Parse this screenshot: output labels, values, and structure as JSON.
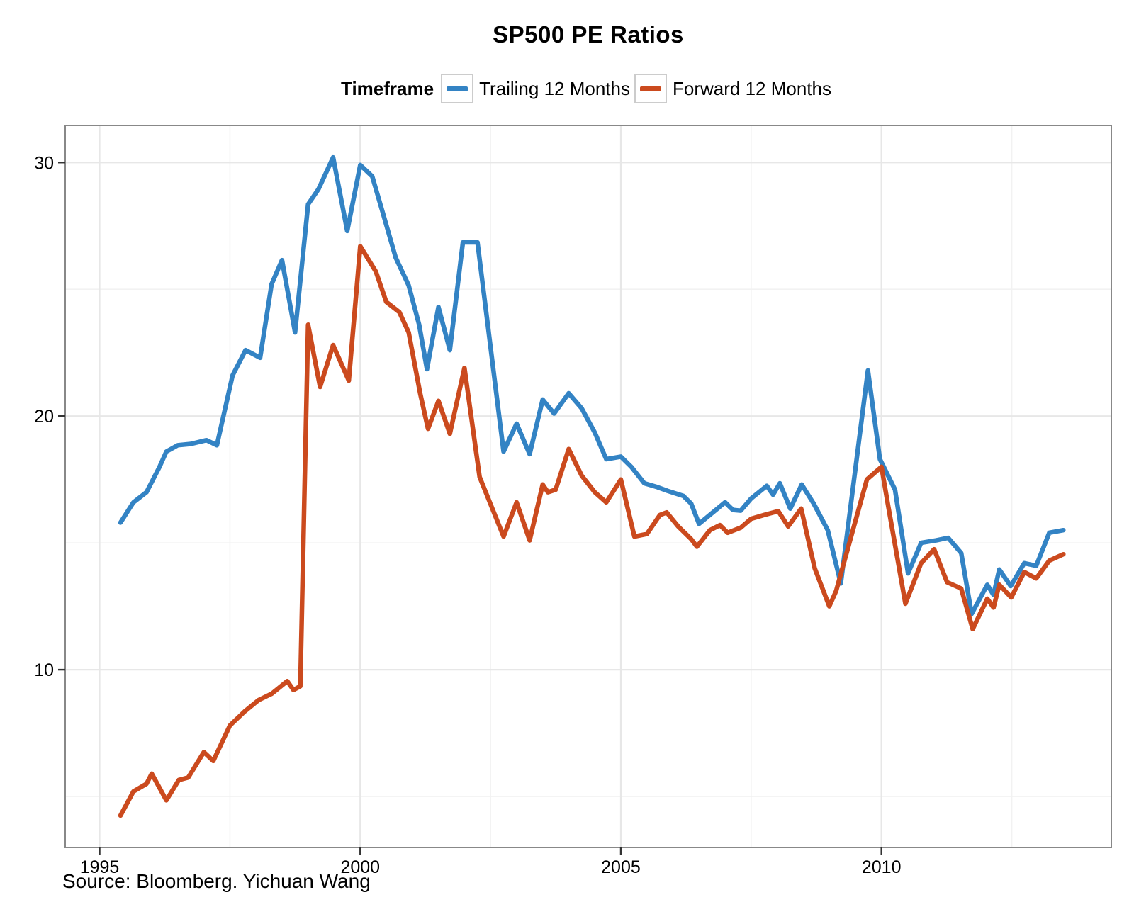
{
  "page": {
    "source_note": "Source: Bloomberg. Yichuan Wang"
  },
  "legend": {
    "title": "Timeframe",
    "items": [
      {
        "label": "Trailing 12 Months",
        "color": "#3383C4"
      },
      {
        "label": "Forward 12 Months",
        "color": "#CB4A1E"
      }
    ]
  },
  "chart_data": {
    "type": "line",
    "title": "SP500 PE Ratios",
    "xlabel": "",
    "ylabel": "",
    "grid": "major+minor",
    "legend_position": "top",
    "x_axis": {
      "range": [
        1994.34,
        2014.41
      ],
      "major_ticks": [
        1995,
        2000,
        2005,
        2010
      ],
      "tick_labels": [
        "1995",
        "2000",
        "2005",
        "2010"
      ],
      "minor_ticks": [
        1997.5,
        2002.5,
        2007.5,
        2012.5
      ]
    },
    "y_axis": {
      "range": [
        2.99,
        31.46
      ],
      "major_ticks": [
        10,
        20,
        30
      ],
      "tick_labels": [
        "10",
        "20",
        "30"
      ],
      "minor_ticks": [
        5,
        15,
        25
      ]
    },
    "series": [
      {
        "name": "Trailing 12 Months",
        "color": "#3383C4",
        "points": [
          [
            1995.4,
            15.8
          ],
          [
            1995.65,
            16.6
          ],
          [
            1995.9,
            17.0
          ],
          [
            1996.15,
            18.0
          ],
          [
            1996.28,
            18.6
          ],
          [
            1996.5,
            18.85
          ],
          [
            1996.75,
            18.9
          ],
          [
            1997.05,
            19.05
          ],
          [
            1997.25,
            18.85
          ],
          [
            1997.55,
            21.6
          ],
          [
            1997.8,
            22.6
          ],
          [
            1998.08,
            22.3
          ],
          [
            1998.3,
            25.2
          ],
          [
            1998.5,
            26.15
          ],
          [
            1998.75,
            23.3
          ],
          [
            1999.0,
            28.35
          ],
          [
            1999.2,
            28.95
          ],
          [
            1999.48,
            30.2
          ],
          [
            1999.75,
            27.3
          ],
          [
            2000.0,
            29.9
          ],
          [
            2000.23,
            29.45
          ],
          [
            2000.45,
            27.9
          ],
          [
            2000.68,
            26.25
          ],
          [
            2000.93,
            25.15
          ],
          [
            2001.13,
            23.6
          ],
          [
            2001.28,
            21.85
          ],
          [
            2001.5,
            24.3
          ],
          [
            2001.72,
            22.6
          ],
          [
            2001.97,
            26.85
          ],
          [
            2002.25,
            26.85
          ],
          [
            2002.75,
            18.6
          ],
          [
            2003.0,
            19.7
          ],
          [
            2003.25,
            18.5
          ],
          [
            2003.5,
            20.65
          ],
          [
            2003.72,
            20.1
          ],
          [
            2004.0,
            20.9
          ],
          [
            2004.25,
            20.3
          ],
          [
            2004.5,
            19.35
          ],
          [
            2004.72,
            18.3
          ],
          [
            2005.0,
            18.4
          ],
          [
            2005.2,
            18.0
          ],
          [
            2005.45,
            17.35
          ],
          [
            2005.7,
            17.2
          ],
          [
            2005.9,
            17.05
          ],
          [
            2006.2,
            16.85
          ],
          [
            2006.35,
            16.55
          ],
          [
            2006.5,
            15.75
          ],
          [
            2007.0,
            16.6
          ],
          [
            2007.15,
            16.3
          ],
          [
            2007.3,
            16.27
          ],
          [
            2007.5,
            16.75
          ],
          [
            2007.8,
            17.25
          ],
          [
            2007.92,
            16.9
          ],
          [
            2008.05,
            17.35
          ],
          [
            2008.25,
            16.35
          ],
          [
            2008.47,
            17.3
          ],
          [
            2008.7,
            16.55
          ],
          [
            2008.97,
            15.5
          ],
          [
            2009.22,
            13.4
          ],
          [
            2009.74,
            21.8
          ],
          [
            2009.97,
            18.3
          ],
          [
            2010.26,
            17.1
          ],
          [
            2010.51,
            13.8
          ],
          [
            2010.76,
            15.0
          ],
          [
            2011.05,
            15.1
          ],
          [
            2011.28,
            15.2
          ],
          [
            2011.53,
            14.6
          ],
          [
            2011.73,
            12.2
          ],
          [
            2012.03,
            13.35
          ],
          [
            2012.15,
            12.95
          ],
          [
            2012.26,
            13.95
          ],
          [
            2012.48,
            13.3
          ],
          [
            2012.74,
            14.2
          ],
          [
            2012.97,
            14.1
          ],
          [
            2013.22,
            15.4
          ],
          [
            2013.49,
            15.5
          ]
        ]
      },
      {
        "name": "Forward 12 Months",
        "color": "#CB4A1E",
        "points": [
          [
            1995.4,
            4.25
          ],
          [
            1995.65,
            5.2
          ],
          [
            1995.9,
            5.5
          ],
          [
            1996.0,
            5.9
          ],
          [
            1996.28,
            4.85
          ],
          [
            1996.52,
            5.65
          ],
          [
            1996.7,
            5.75
          ],
          [
            1997.0,
            6.75
          ],
          [
            1997.18,
            6.4
          ],
          [
            1997.5,
            7.8
          ],
          [
            1997.78,
            8.35
          ],
          [
            1998.05,
            8.8
          ],
          [
            1998.3,
            9.05
          ],
          [
            1998.6,
            9.55
          ],
          [
            1998.72,
            9.2
          ],
          [
            1998.85,
            9.35
          ],
          [
            1999.0,
            23.6
          ],
          [
            1999.23,
            21.15
          ],
          [
            1999.48,
            22.8
          ],
          [
            1999.78,
            21.4
          ],
          [
            2000.0,
            26.7
          ],
          [
            2000.3,
            25.7
          ],
          [
            2000.5,
            24.5
          ],
          [
            2000.75,
            24.1
          ],
          [
            2000.93,
            23.3
          ],
          [
            2001.15,
            20.9
          ],
          [
            2001.3,
            19.5
          ],
          [
            2001.5,
            20.6
          ],
          [
            2001.72,
            19.3
          ],
          [
            2002.0,
            21.9
          ],
          [
            2002.29,
            17.6
          ],
          [
            2002.75,
            15.25
          ],
          [
            2003.0,
            16.6
          ],
          [
            2003.25,
            15.1
          ],
          [
            2003.5,
            17.3
          ],
          [
            2003.6,
            17.0
          ],
          [
            2003.75,
            17.1
          ],
          [
            2004.0,
            18.7
          ],
          [
            2004.25,
            17.65
          ],
          [
            2004.5,
            17.0
          ],
          [
            2004.72,
            16.6
          ],
          [
            2005.0,
            17.5
          ],
          [
            2005.26,
            15.25
          ],
          [
            2005.5,
            15.35
          ],
          [
            2005.75,
            16.1
          ],
          [
            2005.88,
            16.2
          ],
          [
            2006.1,
            15.65
          ],
          [
            2006.35,
            15.15
          ],
          [
            2006.46,
            14.85
          ],
          [
            2006.71,
            15.5
          ],
          [
            2006.9,
            15.7
          ],
          [
            2007.05,
            15.4
          ],
          [
            2007.3,
            15.6
          ],
          [
            2007.5,
            15.95
          ],
          [
            2007.75,
            16.1
          ],
          [
            2008.02,
            16.25
          ],
          [
            2008.21,
            15.65
          ],
          [
            2008.46,
            16.35
          ],
          [
            2008.72,
            14.0
          ],
          [
            2009.0,
            12.5
          ],
          [
            2009.13,
            13.1
          ],
          [
            2009.72,
            17.5
          ],
          [
            2010.0,
            18.0
          ],
          [
            2010.13,
            16.45
          ],
          [
            2010.46,
            12.6
          ],
          [
            2010.76,
            14.2
          ],
          [
            2011.01,
            14.75
          ],
          [
            2011.26,
            13.45
          ],
          [
            2011.53,
            13.2
          ],
          [
            2011.75,
            11.6
          ],
          [
            2012.03,
            12.8
          ],
          [
            2012.15,
            12.45
          ],
          [
            2012.26,
            13.35
          ],
          [
            2012.49,
            12.85
          ],
          [
            2012.74,
            13.85
          ],
          [
            2012.97,
            13.6
          ],
          [
            2013.22,
            14.3
          ],
          [
            2013.49,
            14.55
          ]
        ]
      }
    ]
  }
}
